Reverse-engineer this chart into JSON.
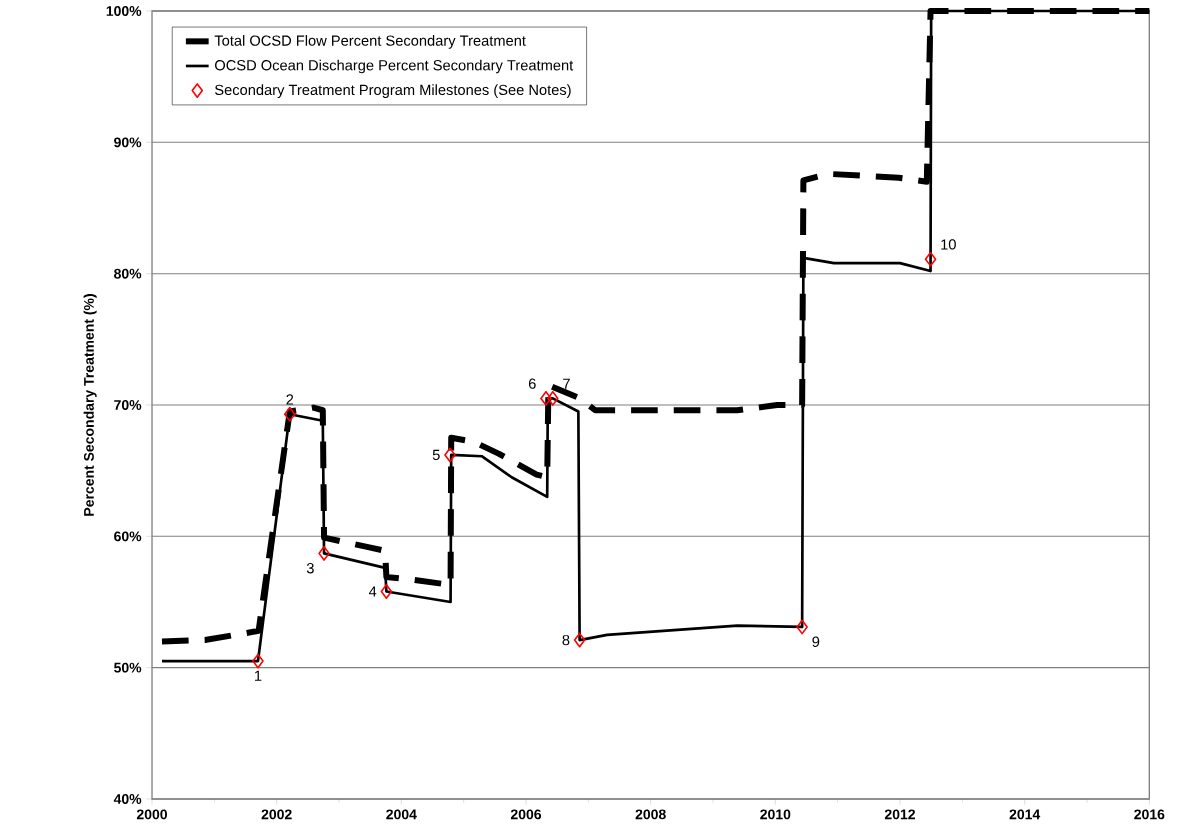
{
  "chart_data": {
    "type": "line",
    "ylabel": "Percent Secondary Treatment (%)",
    "xlim": [
      2000,
      2016
    ],
    "xticks": [
      2000,
      2002,
      2004,
      2006,
      2008,
      2010,
      2012,
      2014,
      2016
    ],
    "ylim": [
      40,
      100
    ],
    "yticks": [
      {
        "value": 40,
        "label": "40%"
      },
      {
        "value": 50,
        "label": "50%"
      },
      {
        "value": 60,
        "label": "60%"
      },
      {
        "value": 70,
        "label": "70%"
      },
      {
        "value": 80,
        "label": "80%"
      },
      {
        "value": 90,
        "label": "90%"
      },
      {
        "value": 100,
        "label": "100%"
      }
    ],
    "grid": "y",
    "legend": "top left",
    "series": [
      {
        "name": "Total OCSD Flow Percent Secondary Treatment",
        "line_style": "dashed",
        "color": "#000000",
        "x": [
          2000.16,
          2000.85,
          2001.71,
          2002.21,
          2002.59,
          2002.74,
          2002.76,
          2003.45,
          2003.74,
          2003.76,
          2004.17,
          2004.79,
          2004.8,
          2005.16,
          2005.56,
          2006.17,
          2006.34,
          2006.36,
          2006.87,
          2007.11,
          2008.9,
          2009.39,
          2010.03,
          2010.43,
          2010.45,
          2010.85,
          2011.98,
          2012.43,
          2012.49,
          2016.0
        ],
        "values": [
          52.0,
          52.1,
          52.8,
          69.5,
          69.8,
          69.6,
          59.9,
          59.2,
          58.9,
          56.9,
          56.7,
          56.3,
          67.5,
          67.2,
          66.3,
          64.7,
          64.5,
          71.5,
          70.5,
          69.6,
          69.6,
          69.6,
          70.0,
          70.0,
          87.1,
          87.6,
          87.3,
          87.0,
          100.0,
          100.0
        ]
      },
      {
        "name": "OCSD Ocean Discharge Percent Secondary Treatment",
        "line_style": "solid",
        "color": "#000000",
        "x": [
          2000.16,
          2001.7,
          2002.21,
          2002.74,
          2002.76,
          2003.74,
          2003.76,
          2004.79,
          2004.8,
          2005.29,
          2005.77,
          2006.34,
          2006.35,
          2006.43,
          2006.84,
          2006.86,
          2007.3,
          2009.39,
          2010.43,
          2010.45,
          2010.94,
          2012.0,
          2012.49,
          2012.5,
          2016.0
        ],
        "values": [
          50.5,
          50.5,
          69.3,
          68.8,
          58.7,
          57.6,
          55.8,
          55.0,
          66.2,
          66.1,
          64.5,
          63.0,
          70.5,
          70.5,
          69.5,
          52.1,
          52.5,
          53.2,
          53.1,
          81.2,
          80.8,
          80.8,
          80.2,
          100.0,
          100.0
        ]
      },
      {
        "name": "Secondary Treatment Program Milestones (See Notes)",
        "type": "scatter",
        "marker": "diamond",
        "color": "#ff0000",
        "x": [
          2001.7,
          2002.21,
          2002.76,
          2003.76,
          2004.78,
          2006.32,
          2006.43,
          2006.86,
          2010.43,
          2012.49
        ],
        "values": [
          50.5,
          69.3,
          58.7,
          55.8,
          66.2,
          70.5,
          70.5,
          52.1,
          53.1,
          81.1
        ]
      }
    ],
    "annotations": [
      {
        "text": "1",
        "x": 2001.7,
        "y": 50.5
      },
      {
        "text": "2",
        "x": 2002.21,
        "y": 69.3
      },
      {
        "text": "3",
        "x": 2002.76,
        "y": 58.7
      },
      {
        "text": "4",
        "x": 2003.76,
        "y": 55.8
      },
      {
        "text": "5",
        "x": 2004.78,
        "y": 66.2
      },
      {
        "text": "6",
        "x": 2006.32,
        "y": 70.5
      },
      {
        "text": "7",
        "x": 2006.43,
        "y": 70.5
      },
      {
        "text": "8",
        "x": 2006.86,
        "y": 52.1
      },
      {
        "text": "9",
        "x": 2010.43,
        "y": 53.1
      },
      {
        "text": "10",
        "x": 2012.49,
        "y": 81.1
      }
    ]
  }
}
